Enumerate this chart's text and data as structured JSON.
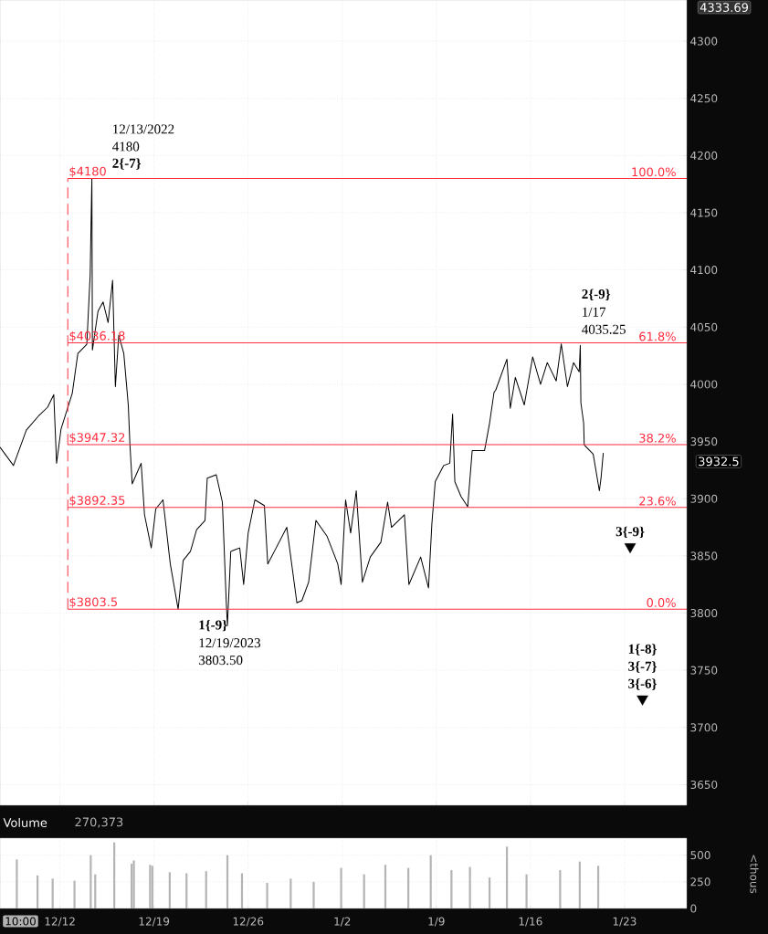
{
  "chart_data": [
    {
      "type": "line",
      "xlim": [
        "2022-12-07T13:00",
        "2023-01-27T15:00"
      ],
      "ylim": [
        3632,
        4336
      ],
      "xticks": [
        {
          "value": "2022-12-12",
          "label": null
        },
        {
          "value": "2022-12-19",
          "label": null
        },
        {
          "value": "2022-12-26",
          "label": null
        },
        {
          "value": "2023-01-02",
          "label": null
        },
        {
          "value": "2023-01-09",
          "label": null
        },
        {
          "value": "2023-01-16",
          "label": null
        },
        {
          "value": "2023-01-23",
          "label": null
        }
      ],
      "yticks": [
        3650,
        3700,
        3750,
        3800,
        3850,
        3900,
        3950,
        4000,
        4050,
        4100,
        4150,
        4200,
        4250,
        4300
      ],
      "tick_labels": "y",
      "grid": true,
      "series": [
        {
          "color": "#000000",
          "x": [
            "2022-12-07T13:00",
            "2022-12-08T13:00",
            "2022-12-09T12:00",
            "2022-12-10T11:00",
            "2022-12-11T02:00",
            "2022-12-11T13:00",
            "2022-12-11T18:00",
            "2022-12-12T02:00",
            "2022-12-12T22:00",
            "2022-12-13T08:00",
            "2022-12-14T00:00",
            "2022-12-14T06:00",
            "2022-12-14T09:00",
            "2022-12-14T10:00",
            "2022-12-14T20:00",
            "2022-12-15T05:00",
            "2022-12-15T14:00",
            "2022-12-15T22:00",
            "2022-12-16T03:00",
            "2022-12-16T09:00",
            "2022-12-16T18:00",
            "2022-12-17T02:00",
            "2022-12-17T05:00",
            "2022-12-17T09:00",
            "2022-12-18T01:00",
            "2022-12-18T07:00",
            "2022-12-18T19:00",
            "2022-12-19T03:00",
            "2022-12-19T16:00",
            "2022-12-20T05:00",
            "2022-12-20T19:00",
            "2022-12-21T04:00",
            "2022-12-21T17:00",
            "2022-12-22T04:00",
            "2022-12-22T19:00",
            "2022-12-22T23:00",
            "2022-12-23T15:00",
            "2022-12-24T02:00",
            "2022-12-24T09:00",
            "2022-12-24T11:00",
            "2022-12-24T17:00",
            "2022-12-25T09:00",
            "2022-12-25T16:00",
            "2022-12-26T00:00",
            "2022-12-26T12:00",
            "2022-12-27T05:00",
            "2022-12-27T11:00",
            "2022-12-28T02:00",
            "2022-12-28T21:00",
            "2022-12-29T15:00",
            "2022-12-30T00:00",
            "2022-12-30T12:00",
            "2022-12-31T01:00",
            "2022-12-31T21:00",
            "2023-01-01T16:00",
            "2023-01-01T22:00",
            "2023-01-02T06:00",
            "2023-01-02T15:00",
            "2023-01-03T01:00",
            "2023-01-03T12:00",
            "2023-01-04T02:00",
            "2023-01-04T21:00",
            "2023-01-05T09:00",
            "2023-01-05T16:00",
            "2023-01-06T15:00",
            "2023-01-06T23:00",
            "2023-01-07T20:00",
            "2023-01-08T10:00",
            "2023-01-08T16:00",
            "2023-01-08T22:00",
            "2023-01-09T13:00",
            "2023-01-10T00:00",
            "2023-01-10T05:00",
            "2023-01-10T09:00",
            "2023-01-10T20:00",
            "2023-01-11T08:00",
            "2023-01-11T16:00",
            "2023-01-12T14:00",
            "2023-01-12T23:00",
            "2023-01-13T07:00",
            "2023-01-13T10:00",
            "2023-01-14T06:00",
            "2023-01-14T12:00",
            "2023-01-14T21:00",
            "2023-01-15T13:00",
            "2023-01-16T04:00",
            "2023-01-16T18:00",
            "2023-01-17T06:00",
            "2023-01-17T22:00",
            "2023-01-18T07:00",
            "2023-01-18T18:00",
            "2023-01-19T05:00",
            "2023-01-19T15:00",
            "2023-01-19T17:00",
            "2023-01-19T18:00",
            "2023-01-19T23:00",
            "2023-01-20T00:00",
            "2023-01-20T16:00",
            "2023-01-21T03:00",
            "2023-01-21T06:00",
            "2023-01-21T10:00"
          ],
          "values": [
            3945,
            3929,
            3960,
            3973,
            3980,
            3991,
            3931,
            3961,
            3992,
            4027,
            4035,
            4096,
            4180,
            4030,
            4064,
            4072,
            4054,
            4091,
            3998,
            4043,
            4027,
            3982,
            3947,
            3913,
            3931,
            3886,
            3857,
            3891,
            3899,
            3843,
            3803.5,
            3846,
            3854,
            3873,
            3881,
            3918,
            3921,
            3897,
            3809,
            3789,
            3854,
            3857,
            3825,
            3870,
            3899,
            3894,
            3843,
            3857,
            3875,
            3809,
            3811,
            3827,
            3881,
            3867,
            3843,
            3825,
            3899,
            3870,
            3907,
            3827,
            3849,
            3862,
            3897,
            3875,
            3886,
            3825,
            3849,
            3822,
            3878,
            3915,
            3929,
            3931,
            3974,
            3915,
            3902,
            3893,
            3942,
            3942,
            3966,
            3993,
            3995,
            4022,
            3979,
            4006,
            3982,
            4024,
            4000,
            4019,
            4003,
            4035.25,
            3998,
            4019,
            4011,
            4034,
            3984,
            3966,
            3947,
            3939,
            3907,
            3918,
            3940
          ]
        },
        {
          "type": "scatter",
          "marker": "triangle",
          "color": "#000000",
          "x": [
            "2023-01-23T10:00",
            "2023-01-24T08:00"
          ],
          "values": [
            3858,
            3725
          ]
        }
      ],
      "ref_lines": [
        {
          "axis": "x",
          "value": "2022-12-12T14:00",
          "color": "#ff2d3f",
          "line_style": "dashed"
        },
        {
          "axis": "y",
          "value": 4180,
          "label": "$4180",
          "color": "#ff2d3f"
        },
        {
          "axis": "y",
          "value": 4036.18,
          "label": "$4036.18",
          "color": "#ff2d3f"
        },
        {
          "axis": "y",
          "value": 3947.32,
          "label": "$3947.32",
          "color": "#ff2d3f"
        },
        {
          "axis": "y",
          "value": 3892.35,
          "label": "$3892.35",
          "color": "#ff2d3f"
        },
        {
          "axis": "y",
          "value": 3803.5,
          "label": "$3803.5",
          "color": "#ff2d3f"
        }
      ],
      "annotations": [
        "4333.69",
        "3932.5",
        {
          "text": "**2{-7}**",
          "x": "2022-12-14T09:00",
          "y": 4180
        },
        "4180",
        "12/13/2022",
        {
          "text": "**1{-9}**",
          "x": "2022-12-20T19:00",
          "y": 3803.5
        },
        "12/19/2023",
        "3803.50",
        {
          "text": "4035.25",
          "x": "2023-01-18T07:00",
          "y": 4035.25
        },
        "1/17",
        "**2{-9}**",
        {
          "text": "**3{-9}**",
          "x": "2023-01-23T10:00",
          "y": 3858
        },
        {
          "text": "**3{-6}**",
          "x": "2023-01-24T08:00",
          "y": 3725
        },
        "**3{-7}**",
        "**1{-8}**",
        {
          "text": "100.0%",
          "x": "2023-01-27T00:00",
          "y": 4180
        },
        {
          "text": "61.8%",
          "x": "2023-01-27T00:00",
          "y": 4036.18
        },
        {
          "text": "38.2%",
          "x": "2023-01-27T00:00",
          "y": 3947.32
        },
        {
          "text": "23.6%",
          "x": "2023-01-27T00:00",
          "y": 3892.35
        },
        {
          "text": "0.0%",
          "x": "2023-01-27T00:00",
          "y": 3803.5
        }
      ]
    },
    {
      "type": "bar",
      "title": "Volume",
      "ylabel": "<thous",
      "xlim": [
        "2022-12-07T13:00",
        "2023-01-27T15:00"
      ],
      "ylim": [
        0,
        660
      ],
      "xticks": [
        {
          "value": "2022-12-12",
          "label": "12/12"
        },
        {
          "value": "2022-12-19",
          "label": "12/19"
        },
        {
          "value": "2022-12-26",
          "label": "12/26"
        },
        {
          "value": "2023-01-02",
          "label": "1/2"
        },
        {
          "value": "2023-01-09",
          "label": "1/9"
        },
        {
          "value": "2023-01-16",
          "label": "1/16"
        },
        {
          "value": "2023-01-23",
          "label": "1/23"
        }
      ],
      "yticks": [
        0,
        250,
        500
      ],
      "grid": true,
      "x": [
        "2022-12-08T19:00",
        "2022-12-10T08:00",
        "2022-12-11T11:00",
        "2022-12-13T02:00",
        "2022-12-14T07:00",
        "2022-12-14T15:00",
        "2022-12-16T01:00",
        "2022-12-17T08:00",
        "2022-12-17T12:00",
        "2022-12-18T17:00",
        "2022-12-18T21:00",
        "2022-12-20T04:00",
        "2022-12-21T10:00",
        "2022-12-22T21:00",
        "2022-12-24T11:00",
        "2022-12-25T13:00",
        "2022-12-27T10:00",
        "2022-12-29T04:00",
        "2022-12-30T21:00",
        "2023-01-01T22:00",
        "2023-01-03T15:00",
        "2023-01-05T05:00",
        "2023-01-06T22:00",
        "2023-01-08T14:00",
        "2023-01-10T03:00",
        "2023-01-11T12:00",
        "2023-01-12T23:00",
        "2023-01-14T06:00",
        "2023-01-15T17:00",
        "2023-01-18T05:00",
        "2023-01-19T16:00",
        "2023-01-21T01:00"
      ],
      "values": [
        460,
        310,
        280,
        260,
        500,
        320,
        620,
        420,
        450,
        410,
        400,
        340,
        330,
        350,
        500,
        330,
        240,
        280,
        250,
        380,
        320,
        410,
        380,
        500,
        360,
        390,
        290,
        580,
        320,
        360,
        440,
        400
      ],
      "color": "#b4b4b4",
      "annotations": [
        "270,373",
        "10:00"
      ]
    }
  ]
}
